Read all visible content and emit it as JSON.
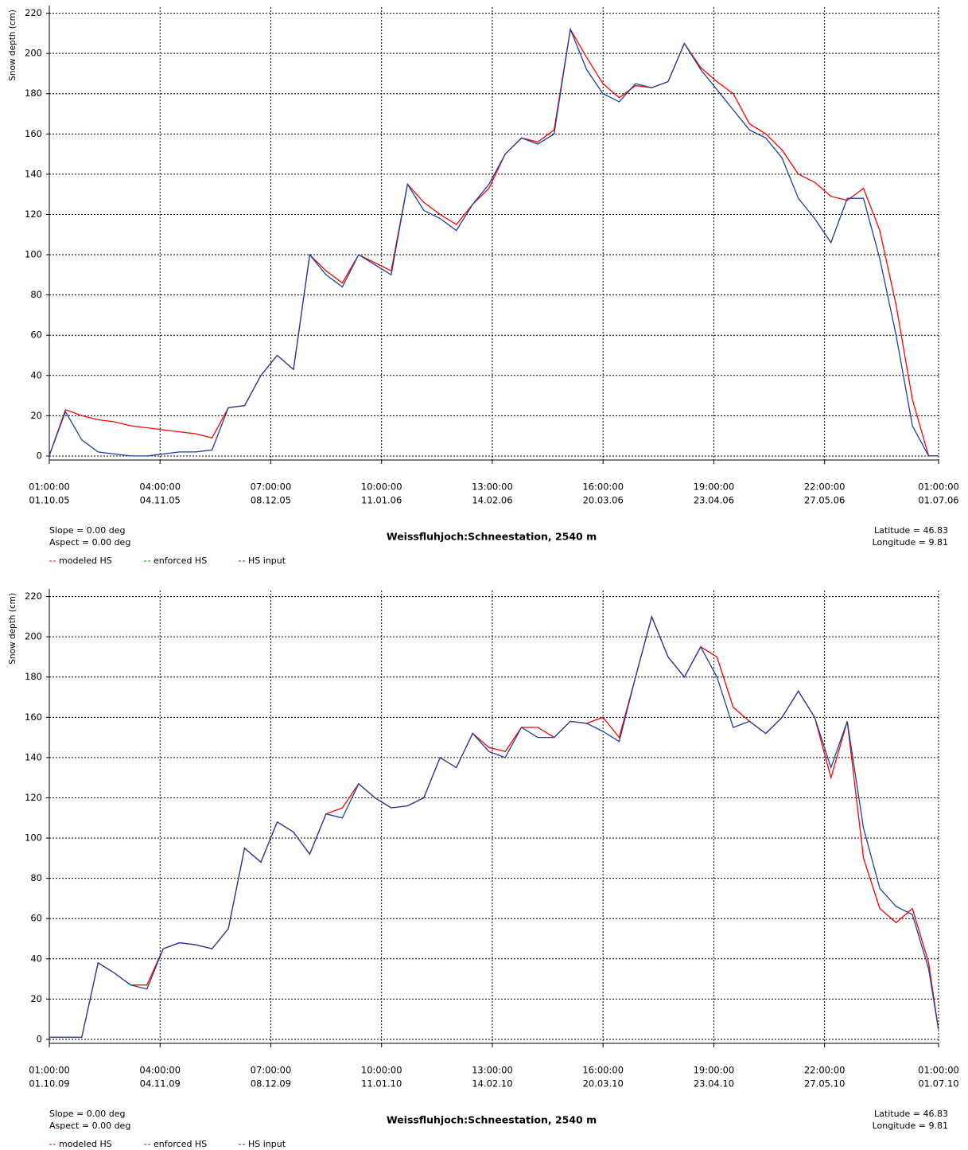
{
  "chart_data": [
    {
      "type": "line",
      "title": "Weissfluhjoch:Schneestation, 2540 m",
      "ylabel": "Snow depth (cm)",
      "slope": "Slope = 0.00 deg",
      "aspect": "Aspect = 0.00 deg",
      "latitude": "Latitude = 46.83",
      "longitude": "Longitude = 9.81",
      "grid": true,
      "legend": "bottom-left",
      "x": [
        "2005-10-01",
        "2005-10-06",
        "2005-10-11",
        "2005-10-16",
        "2005-10-21",
        "2005-10-26",
        "2005-10-31",
        "2005-11-05",
        "2005-11-10",
        "2005-11-15",
        "2005-11-20",
        "2005-11-25",
        "2005-11-30",
        "2005-12-05",
        "2005-12-10",
        "2005-12-15",
        "2005-12-20",
        "2005-12-25",
        "2005-12-30",
        "2006-01-04",
        "2006-01-09",
        "2006-01-14",
        "2006-01-19",
        "2006-01-24",
        "2006-01-29",
        "2006-02-03",
        "2006-02-08",
        "2006-02-13",
        "2006-02-18",
        "2006-02-23",
        "2006-02-28",
        "2006-03-05",
        "2006-03-10",
        "2006-03-15",
        "2006-03-20",
        "2006-03-25",
        "2006-03-30",
        "2006-04-04",
        "2006-04-09",
        "2006-04-14",
        "2006-04-19",
        "2006-04-24",
        "2006-04-29",
        "2006-05-04",
        "2006-05-09",
        "2006-05-14",
        "2006-05-19",
        "2006-05-24",
        "2006-05-29",
        "2006-06-03",
        "2006-06-08",
        "2006-06-13",
        "2006-06-18",
        "2006-06-23",
        "2006-06-28",
        "2006-07-01"
      ],
      "series": [
        {
          "name": "modeled HS",
          "color": "#ff0000",
          "values": [
            0,
            23,
            20,
            18,
            17,
            15,
            14,
            13,
            12,
            11,
            9,
            24,
            25,
            40,
            50,
            43,
            100,
            92,
            86,
            100,
            96,
            92,
            135,
            126,
            120,
            115,
            125,
            133,
            150,
            158,
            156,
            162,
            212,
            198,
            185,
            178,
            184,
            183,
            186,
            205,
            193,
            186,
            180,
            165,
            160,
            152,
            140,
            136,
            129,
            127,
            133,
            112,
            75,
            28,
            0,
            0
          ]
        },
        {
          "name": "enforced HS",
          "color": "#008000",
          "values": [
            null,
            null,
            null,
            null,
            null,
            null,
            null,
            null,
            null,
            null,
            null,
            null,
            null,
            null,
            null,
            null,
            null,
            null,
            null,
            null,
            null,
            null,
            null,
            null,
            null,
            null,
            null,
            null,
            null,
            null,
            null,
            null,
            null,
            null,
            null,
            null,
            null,
            null,
            null,
            null,
            null,
            null,
            null,
            null,
            null,
            null,
            null,
            null,
            null,
            null,
            null,
            null,
            null,
            null,
            null,
            null
          ]
        },
        {
          "name": "HS input",
          "color": "#1f3f9f",
          "values": [
            0,
            22,
            8,
            2,
            1,
            0,
            0,
            1,
            2,
            2,
            3,
            24,
            25,
            40,
            50,
            43,
            100,
            90,
            84,
            100,
            95,
            90,
            135,
            122,
            118,
            112,
            125,
            135,
            150,
            158,
            155,
            160,
            212,
            192,
            180,
            176,
            185,
            183,
            186,
            205,
            192,
            182,
            172,
            162,
            158,
            148,
            128,
            118,
            106,
            128,
            128,
            98,
            60,
            15,
            0,
            0
          ]
        }
      ],
      "xlim": [
        "2005-10-01T01:00",
        "2006-07-01T01:00"
      ],
      "xticks": [
        {
          "value": "2005-10-01T01:00",
          "label": [
            "01:00:00",
            "01.10.05"
          ]
        },
        {
          "value": "2005-11-04T01:00",
          "label": [
            "04:00:00",
            "04.11.05"
          ]
        },
        {
          "value": "2005-12-08T01:00",
          "label": [
            "07:00:00",
            "08.12.05"
          ]
        },
        {
          "value": "2006-01-11T01:00",
          "label": [
            "10:00:00",
            "11.01.06"
          ]
        },
        {
          "value": "2006-02-14T01:00",
          "label": [
            "13:00:00",
            "14.02.06"
          ]
        },
        {
          "value": "2006-03-20T01:00",
          "label": [
            "16:00:00",
            "20.03.06"
          ]
        },
        {
          "value": "2006-04-23T01:00",
          "label": [
            "19:00:00",
            "23.04.06"
          ]
        },
        {
          "value": "2006-05-27T01:00",
          "label": [
            "22:00:00",
            "27.05.06"
          ]
        },
        {
          "value": "2006-07-01T01:00",
          "label": [
            "01:00:00",
            "01.07.06"
          ]
        }
      ],
      "ylim": [
        -2,
        223
      ],
      "yticks": [
        0,
        20,
        40,
        60,
        80,
        100,
        120,
        140,
        160,
        180,
        200,
        220
      ]
    },
    {
      "type": "line",
      "title": "Weissfluhjoch:Schneestation, 2540 m",
      "ylabel": "Snow depth (cm)",
      "slope": "Slope = 0.00 deg",
      "aspect": "Aspect = 0.00 deg",
      "latitude": "Latitude = 46.83",
      "longitude": "Longitude = 9.81",
      "grid": true,
      "legend": "bottom-left",
      "x": [
        "2009-10-01",
        "2009-10-06",
        "2009-10-11",
        "2009-10-16",
        "2009-10-21",
        "2009-10-26",
        "2009-10-31",
        "2009-11-05",
        "2009-11-10",
        "2009-11-15",
        "2009-11-20",
        "2009-11-25",
        "2009-11-30",
        "2009-12-05",
        "2009-12-10",
        "2009-12-15",
        "2009-12-20",
        "2009-12-25",
        "2009-12-30",
        "2010-01-04",
        "2010-01-09",
        "2010-01-14",
        "2010-01-19",
        "2010-01-24",
        "2010-01-29",
        "2010-02-03",
        "2010-02-08",
        "2010-02-13",
        "2010-02-18",
        "2010-02-23",
        "2010-02-28",
        "2010-03-05",
        "2010-03-10",
        "2010-03-15",
        "2010-03-20",
        "2010-03-25",
        "2010-03-30",
        "2010-04-04",
        "2010-04-09",
        "2010-04-14",
        "2010-04-19",
        "2010-04-24",
        "2010-04-29",
        "2010-05-04",
        "2010-05-09",
        "2010-05-14",
        "2010-05-19",
        "2010-05-24",
        "2010-05-29",
        "2010-06-03",
        "2010-06-08",
        "2010-06-13",
        "2010-06-18",
        "2010-06-23",
        "2010-06-28",
        "2010-07-01"
      ],
      "series": [
        {
          "name": "modeled HS",
          "color": "#ff0000",
          "values": [
            1,
            1,
            1,
            38,
            33,
            27,
            27,
            45,
            48,
            47,
            45,
            55,
            95,
            88,
            108,
            103,
            92,
            112,
            115,
            127,
            120,
            115,
            116,
            120,
            140,
            135,
            152,
            145,
            143,
            155,
            155,
            150,
            158,
            157,
            160,
            150,
            180,
            210,
            190,
            180,
            195,
            190,
            165,
            158,
            152,
            160,
            173,
            160,
            130,
            158,
            90,
            65,
            58,
            65,
            38,
            5
          ]
        },
        {
          "name": "enforced HS",
          "color": "#008000",
          "values": [
            null,
            null,
            null,
            null,
            null,
            null,
            null,
            null,
            null,
            null,
            null,
            null,
            null,
            null,
            null,
            null,
            null,
            null,
            null,
            null,
            null,
            null,
            null,
            null,
            null,
            null,
            null,
            null,
            null,
            null,
            null,
            null,
            null,
            null,
            null,
            null,
            null,
            null,
            null,
            null,
            null,
            null,
            null,
            null,
            null,
            null,
            null,
            null,
            null,
            null,
            null,
            null,
            null,
            null,
            null,
            null
          ]
        },
        {
          "name": "HS input",
          "color": "#1f3f9f",
          "values": [
            1,
            1,
            1,
            38,
            33,
            27,
            25,
            45,
            48,
            47,
            45,
            55,
            95,
            88,
            108,
            103,
            92,
            112,
            110,
            127,
            120,
            115,
            116,
            120,
            140,
            135,
            152,
            143,
            140,
            155,
            150,
            150,
            158,
            157,
            153,
            148,
            180,
            210,
            190,
            180,
            195,
            180,
            155,
            158,
            152,
            160,
            173,
            160,
            135,
            158,
            105,
            75,
            66,
            62,
            35,
            5
          ]
        }
      ],
      "xlim": [
        "2009-10-01T01:00",
        "2010-07-01T01:00"
      ],
      "xticks": [
        {
          "value": "2009-10-01T01:00",
          "label": [
            "01:00:00",
            "01.10.09"
          ]
        },
        {
          "value": "2009-11-04T01:00",
          "label": [
            "04:00:00",
            "04.11.09"
          ]
        },
        {
          "value": "2009-12-08T01:00",
          "label": [
            "07:00:00",
            "08.12.09"
          ]
        },
        {
          "value": "2010-01-11T01:00",
          "label": [
            "10:00:00",
            "11.01.10"
          ]
        },
        {
          "value": "2010-02-14T01:00",
          "label": [
            "13:00:00",
            "14.02.10"
          ]
        },
        {
          "value": "2010-03-20T01:00",
          "label": [
            "16:00:00",
            "20.03.10"
          ]
        },
        {
          "value": "2010-04-23T01:00",
          "label": [
            "19:00:00",
            "23.04.10"
          ]
        },
        {
          "value": "2010-05-27T01:00",
          "label": [
            "22:00:00",
            "27.05.10"
          ]
        },
        {
          "value": "2010-07-01T01:00",
          "label": [
            "01:00:00",
            "01.07.10"
          ]
        }
      ],
      "ylim": [
        -2,
        223
      ],
      "yticks": [
        0,
        20,
        40,
        60,
        80,
        100,
        120,
        140,
        160,
        180,
        200,
        220
      ]
    }
  ]
}
